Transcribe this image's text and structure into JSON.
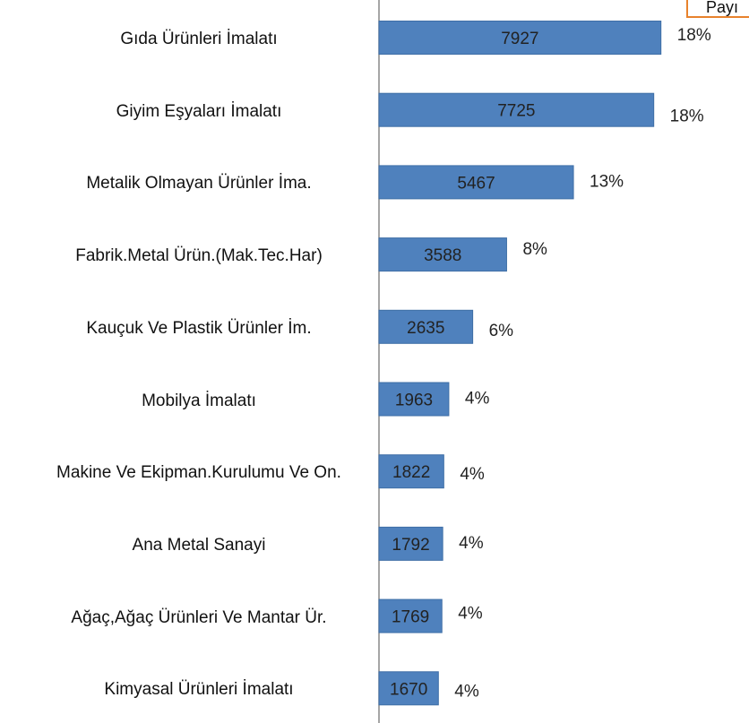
{
  "chart_data": {
    "type": "barh",
    "categories": [
      "Gıda Ürünleri İmalatı",
      "Giyim Eşyaları İmalatı",
      "Metalik Olmayan Ürünler İma.",
      "Fabrik.Metal Ürün.(Mak.Tec.Har)",
      "Kauçuk Ve Plastik Ürünler İm.",
      "Mobilya İmalatı",
      "Makine Ve Ekipman.Kurulumu Ve On.",
      "Ana Metal Sanayi",
      "Ağaç,Ağaç Ürünleri Ve Mantar Ür.",
      "Kimyasal Ürünleri İmalatı"
    ],
    "values": [
      7927,
      7725,
      5467,
      3588,
      2635,
      1963,
      1822,
      1792,
      1769,
      1670
    ],
    "share_labels": [
      "18%",
      "18%",
      "13%",
      "8%",
      "6%",
      "4%",
      "4%",
      "4%",
      "4%",
      "4%"
    ],
    "legend_title": "Payı",
    "color": "#4f81bd",
    "xlim": [
      0,
      10000
    ]
  }
}
